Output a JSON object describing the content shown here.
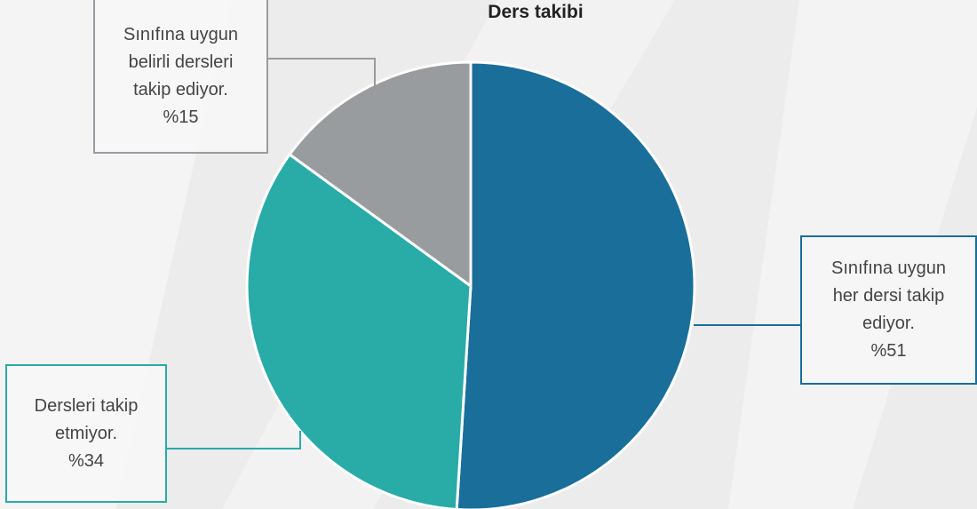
{
  "chart_data": {
    "type": "pie",
    "title": "Ders takibi",
    "categories": [
      "Sınıfına uygun her dersi takip ediyor.",
      "Dersleri takip etmiyor.",
      "Sınıfına uygun belirli dersleri takip ediyor."
    ],
    "values": [
      51,
      34,
      15
    ],
    "value_labels": [
      "%51",
      "%34",
      "%15"
    ],
    "colors": [
      "#1a6e9a",
      "#29aba8",
      "#999c9f"
    ]
  }
}
